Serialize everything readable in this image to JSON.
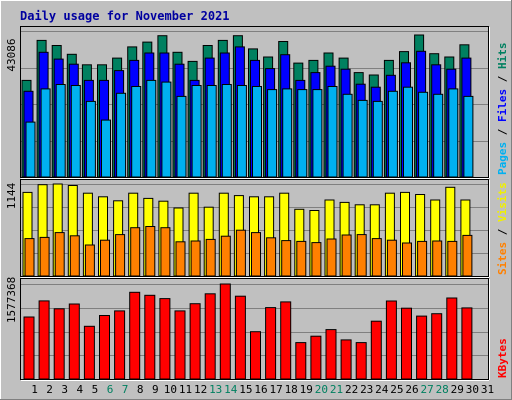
{
  "chart_data": [
    {
      "type": "bar",
      "title": "Daily usage for November 2021",
      "categories": [
        "1",
        "2",
        "3",
        "4",
        "5",
        "6",
        "7",
        "8",
        "9",
        "10",
        "11",
        "12",
        "13",
        "14",
        "15",
        "16",
        "17",
        "18",
        "19",
        "20",
        "21",
        "22",
        "23",
        "24",
        "25",
        "26",
        "27",
        "28",
        "29",
        "30",
        "31"
      ],
      "weekend_categories": [
        "6",
        "7",
        "13",
        "14",
        "20",
        "21",
        "27",
        "28"
      ],
      "ymax_label": "43086",
      "ylim": [
        0,
        43086
      ],
      "grid": true,
      "ylabel_parts": [
        {
          "text": "Pages",
          "color": "#00b0f0"
        },
        {
          "text": " / ",
          "color": "#000000"
        },
        {
          "text": "Files",
          "color": "#0000ff"
        },
        {
          "text": " / ",
          "color": "#000000"
        },
        {
          "text": "Hits",
          "color": "#008060"
        }
      ],
      "series": [
        {
          "name": "Hits",
          "color": "#008060",
          "values": [
            28500,
            40300,
            38800,
            36200,
            33100,
            33100,
            35100,
            38400,
            39800,
            41700,
            36800,
            34100,
            38800,
            40300,
            41700,
            37800,
            35400,
            40000,
            33600,
            34400,
            36600,
            35100,
            30800,
            30100,
            34400,
            37000,
            41900,
            36400,
            35400,
            39000,
            0
          ]
        },
        {
          "name": "Files",
          "color": "#0000ff",
          "values": [
            25300,
            36800,
            34800,
            33300,
            28500,
            28500,
            31400,
            34400,
            36600,
            36600,
            33300,
            28500,
            35100,
            36600,
            38400,
            34400,
            32000,
            36100,
            28500,
            30800,
            32700,
            31800,
            27400,
            26500,
            30000,
            33700,
            37100,
            33100,
            31800,
            35100,
            0
          ]
        },
        {
          "name": "Pages",
          "color": "#00b0f0",
          "values": [
            16200,
            26000,
            27300,
            27000,
            22300,
            16800,
            24700,
            26700,
            28500,
            28000,
            23800,
            27000,
            27000,
            27300,
            27000,
            26700,
            25800,
            26000,
            25800,
            25800,
            26700,
            24400,
            22600,
            22300,
            25300,
            26500,
            25000,
            24400,
            26000,
            23800,
            0
          ]
        }
      ]
    },
    {
      "type": "bar",
      "ymax_label": "1144",
      "ylim": [
        0,
        1144
      ],
      "grid": true,
      "ylabel_parts": [
        {
          "text": "Sites",
          "color": "#ff8000"
        },
        {
          "text": " / ",
          "color": "#000000"
        },
        {
          "text": "Visits",
          "color": "#f0f000"
        }
      ],
      "series": [
        {
          "name": "Visits",
          "color": "#ffff00",
          "values": [
            1040,
            1135,
            1144,
            1125,
            1030,
            985,
            935,
            1030,
            965,
            930,
            845,
            1030,
            855,
            1030,
            1000,
            985,
            985,
            1030,
            830,
            815,
            945,
            915,
            885,
            885,
            1030,
            1040,
            1014,
            945,
            1103,
            945,
            0
          ]
        },
        {
          "name": "Sites",
          "color": "#ff8000",
          "values": [
            465,
            480,
            540,
            500,
            385,
            445,
            515,
            600,
            615,
            600,
            425,
            435,
            455,
            495,
            570,
            540,
            475,
            440,
            430,
            415,
            460,
            510,
            515,
            465,
            445,
            410,
            430,
            435,
            430,
            505,
            0
          ]
        }
      ]
    },
    {
      "type": "bar",
      "ymax_label": "1577368",
      "ylim": [
        0,
        1577368
      ],
      "grid": true,
      "ylabel_parts": [
        {
          "text": "KBytes",
          "color": "#ff0000"
        }
      ],
      "series": [
        {
          "name": "KBytes",
          "color": "#ff0000",
          "values": [
            1030000,
            1296000,
            1165000,
            1245000,
            875000,
            1055000,
            1130000,
            1440000,
            1390000,
            1335000,
            1130000,
            1250000,
            1415000,
            1577368,
            1375000,
            785000,
            1185000,
            1280000,
            605000,
            710000,
            820000,
            650000,
            605000,
            960000,
            1295000,
            1175000,
            1045000,
            1085000,
            1345000,
            1180000,
            0
          ]
        }
      ]
    }
  ]
}
